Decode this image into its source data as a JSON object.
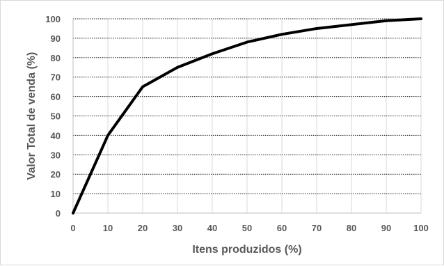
{
  "chart_data": {
    "type": "line",
    "title": "",
    "xlabel": "Itens produzidos (%)",
    "ylabel": "Valor Total de venda (%)",
    "xlim": [
      0,
      100
    ],
    "ylim": [
      0,
      100
    ],
    "x_ticks": [
      0,
      10,
      20,
      30,
      40,
      50,
      60,
      70,
      80,
      90,
      100
    ],
    "y_ticks": [
      0,
      10,
      20,
      30,
      40,
      50,
      60,
      70,
      80,
      90,
      100
    ],
    "grid": {
      "horizontal": "dotted",
      "vertical": "solid-light"
    },
    "legend": "none",
    "series": [
      {
        "color": "#000000",
        "x": [
          0,
          10,
          20,
          30,
          40,
          50,
          60,
          70,
          80,
          90,
          100
        ],
        "values": [
          0,
          40,
          65,
          75,
          82,
          88,
          92,
          95,
          97,
          99,
          100
        ]
      }
    ]
  }
}
